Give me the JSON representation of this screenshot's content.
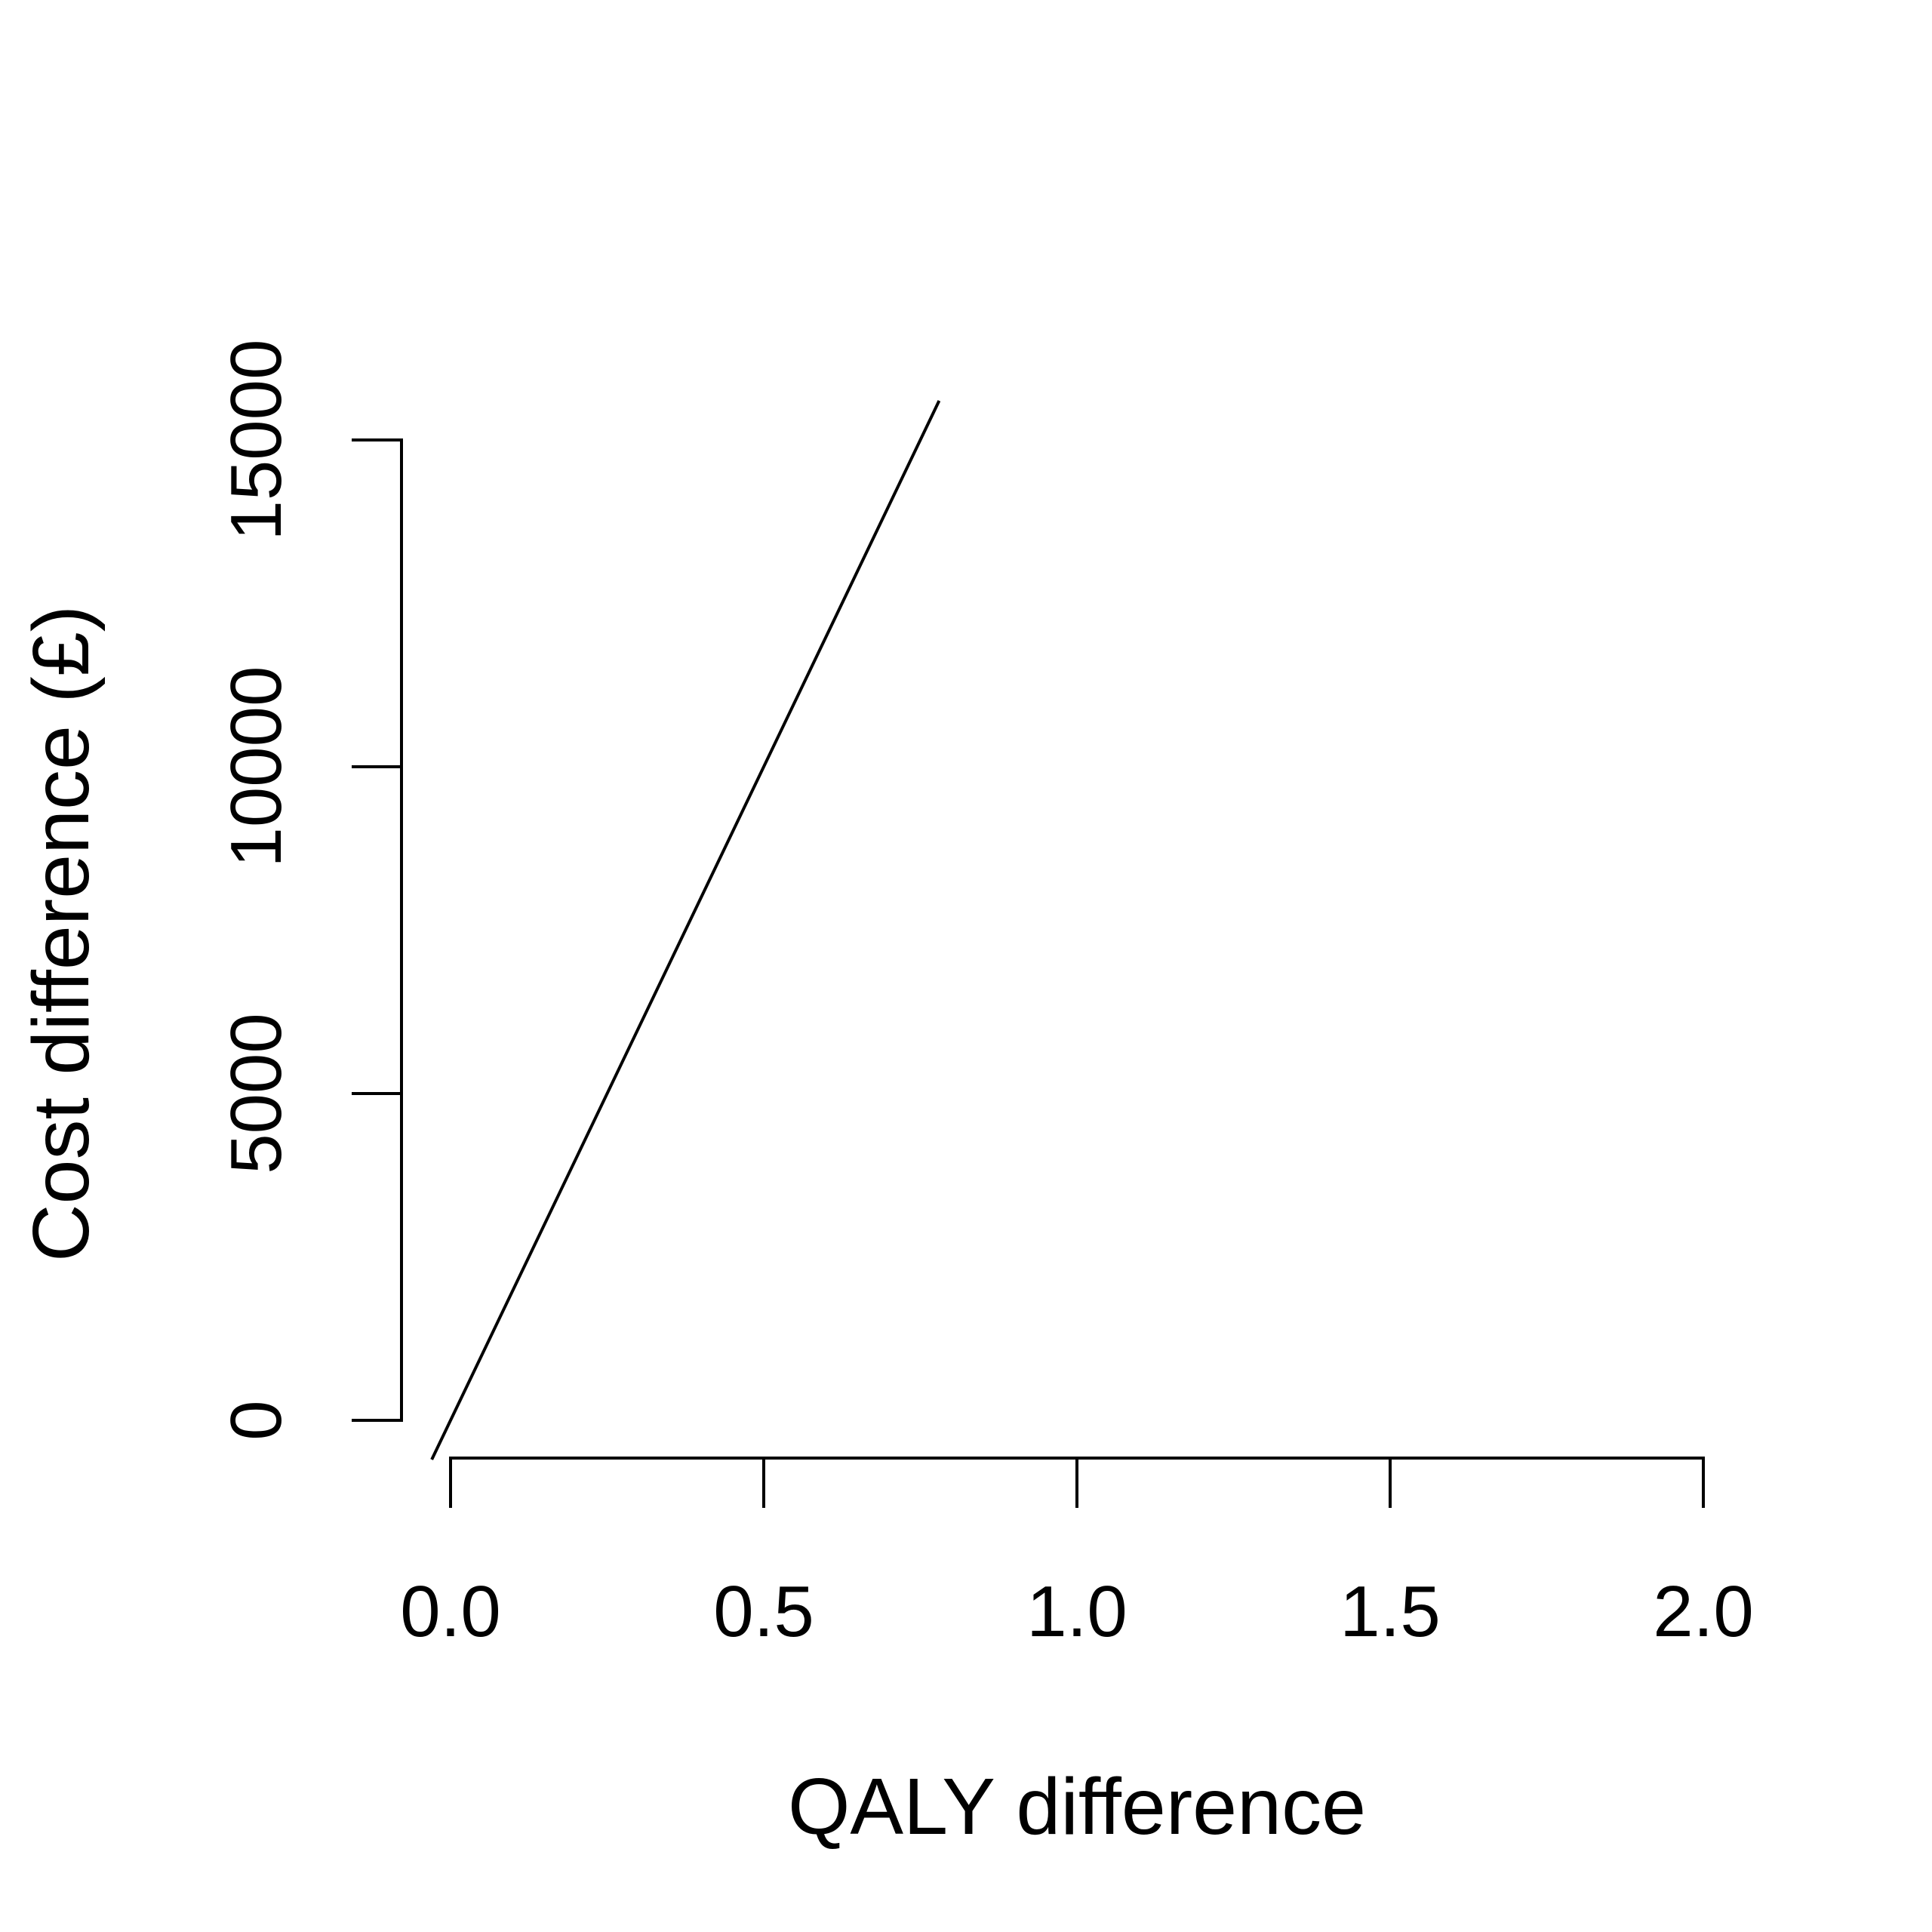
{
  "chart_data": {
    "type": "line",
    "title": "",
    "xlabel": "QALY difference",
    "ylabel": "Cost difference (£)",
    "xlim": [
      0,
      2
    ],
    "ylim": [
      0,
      15000
    ],
    "x_ticks": [
      "0.0",
      "0.5",
      "1.0",
      "1.5",
      "2.0"
    ],
    "x_tick_values": [
      0,
      0.5,
      1,
      1.5,
      2
    ],
    "y_ticks": [
      "0",
      "5000",
      "10000",
      "15000"
    ],
    "y_tick_values": [
      0,
      5000,
      10000,
      15000
    ],
    "grid": false,
    "series": [
      {
        "x": [
          -0.03,
          0.78
        ],
        "y": [
          -600,
          15600
        ]
      }
    ],
    "colors": {
      "line": "#000000",
      "background": "#ffffff"
    }
  }
}
